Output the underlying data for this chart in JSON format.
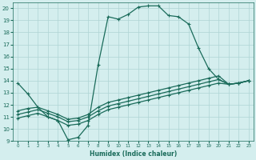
{
  "xlabel": "Humidex (Indice chaleur)",
  "bg_color": "#d4eeee",
  "grid_color": "#aed4d4",
  "line_color": "#1a6b5a",
  "xlim": [
    -0.5,
    23.5
  ],
  "ylim": [
    9,
    20.5
  ],
  "xticks": [
    0,
    1,
    2,
    3,
    4,
    5,
    6,
    7,
    8,
    9,
    10,
    11,
    12,
    13,
    14,
    15,
    16,
    17,
    18,
    19,
    20,
    21,
    22,
    23
  ],
  "yticks": [
    9,
    10,
    11,
    12,
    13,
    14,
    15,
    16,
    17,
    18,
    19,
    20
  ],
  "curve1_x": [
    0,
    1,
    2,
    3,
    4,
    5,
    6,
    7,
    8,
    9,
    10,
    11,
    12,
    13,
    14,
    15,
    16,
    17,
    18,
    19,
    20,
    21,
    22,
    23
  ],
  "curve1_y": [
    13.8,
    12.9,
    11.8,
    11.0,
    10.7,
    9.1,
    9.3,
    10.3,
    15.3,
    19.3,
    19.1,
    19.5,
    20.1,
    20.2,
    20.2,
    19.4,
    19.3,
    18.7,
    16.7,
    15.0,
    14.1,
    13.7,
    13.8,
    14.0
  ],
  "curve2_x": [
    0,
    1,
    2,
    3,
    4,
    5,
    6,
    7,
    8,
    9,
    10,
    11,
    12,
    13,
    14,
    15,
    16,
    17,
    18,
    19,
    20,
    21,
    22,
    23
  ],
  "curve2_y": [
    11.5,
    11.7,
    11.8,
    11.5,
    11.2,
    10.8,
    10.9,
    11.2,
    11.8,
    12.2,
    12.4,
    12.6,
    12.8,
    13.0,
    13.2,
    13.4,
    13.6,
    13.8,
    14.0,
    14.2,
    14.4,
    13.7,
    13.8,
    14.0
  ],
  "curve3_x": [
    0,
    1,
    2,
    3,
    4,
    5,
    6,
    7,
    8,
    9,
    10,
    11,
    12,
    13,
    14,
    15,
    16,
    17,
    18,
    19,
    20,
    21,
    22,
    23
  ],
  "curve3_y": [
    11.2,
    11.4,
    11.6,
    11.3,
    11.0,
    10.6,
    10.7,
    11.0,
    11.5,
    11.9,
    12.1,
    12.3,
    12.5,
    12.7,
    12.9,
    13.1,
    13.3,
    13.5,
    13.7,
    13.9,
    14.1,
    13.7,
    13.8,
    14.0
  ],
  "curve4_x": [
    0,
    1,
    2,
    3,
    4,
    5,
    6,
    7,
    8,
    9,
    10,
    11,
    12,
    13,
    14,
    15,
    16,
    17,
    18,
    19,
    20,
    21,
    22,
    23
  ],
  "curve4_y": [
    10.9,
    11.1,
    11.3,
    11.0,
    10.7,
    10.3,
    10.4,
    10.7,
    11.2,
    11.6,
    11.8,
    12.0,
    12.2,
    12.4,
    12.6,
    12.8,
    13.0,
    13.2,
    13.4,
    13.6,
    13.8,
    13.7,
    13.8,
    14.0
  ]
}
